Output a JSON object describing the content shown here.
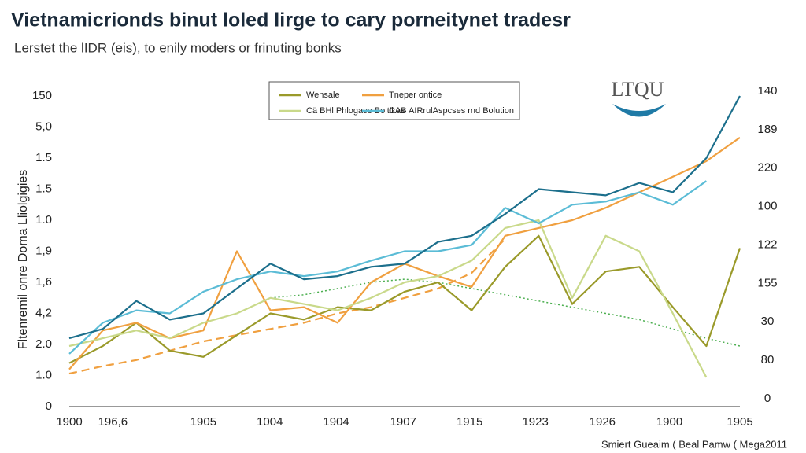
{
  "chart_data": {
    "type": "line",
    "title": "Vietnamicrionds binut loled lirge to cary porneitynet tradesr",
    "subtitle": "Lerstet the lIDR (eis), to enily moders or frinuting bonks",
    "y_label": "Fltenremil onre Doma Lliolgigies",
    "logo": "LTQU",
    "source": "Smiert Gueaim ( Beal Pamw ( Mega2011",
    "x": [
      0,
      5,
      10,
      15,
      20,
      25,
      30,
      35,
      40,
      45,
      50,
      55,
      60,
      65,
      70,
      75,
      80,
      85,
      90,
      95,
      100
    ],
    "xlim": [
      0,
      100
    ],
    "xticks": [
      {
        "value": 0,
        "label": "1900"
      },
      {
        "value": 6.5,
        "label": "196,6"
      },
      {
        "value": 20,
        "label": "1905"
      },
      {
        "value": 29.9,
        "label": "1004"
      },
      {
        "value": 39.8,
        "label": "1904"
      },
      {
        "value": 49.8,
        "label": "1907"
      },
      {
        "value": 59.7,
        "label": "1915"
      },
      {
        "value": 69.5,
        "label": "1923"
      },
      {
        "value": 79.5,
        "label": "1926"
      },
      {
        "value": 89.5,
        "label": "1900"
      },
      {
        "value": 100,
        "label": "1905"
      }
    ],
    "ylim": [
      0,
      100
    ],
    "yticks": [
      0,
      {
        "value": 10,
        "label": "1.0"
      },
      {
        "value": 20,
        "label": "2.0"
      },
      {
        "value": 30,
        "label": "4,2"
      },
      {
        "value": 40,
        "label": "1,6"
      },
      {
        "value": 50,
        "label": "1,9"
      },
      {
        "value": 60,
        "label": "1.0"
      },
      {
        "value": 70,
        "label": "1.5"
      },
      {
        "value": 80,
        "label": "1.5"
      },
      {
        "value": 90,
        "label": "5,0"
      },
      {
        "value": 100,
        "label": "150"
      }
    ],
    "y2lim": [
      0,
      160
    ],
    "y2ticks": [
      0,
      {
        "value": 20,
        "label": "80"
      },
      {
        "value": 40,
        "label": "30"
      },
      {
        "value": 60,
        "label": "155"
      },
      {
        "value": 80,
        "label": "122"
      },
      {
        "value": 100,
        "label": "100"
      },
      {
        "value": 120,
        "label": "220"
      },
      {
        "value": 140,
        "label": "189"
      },
      {
        "value": 160,
        "label": "140"
      }
    ],
    "series": [
      {
        "color": "#1c6f8c",
        "values": [
          22,
          25,
          34,
          28,
          30,
          38,
          46,
          41,
          42,
          45,
          46,
          53,
          55,
          62,
          70,
          69,
          68,
          72,
          69,
          80,
          100
        ]
      },
      {
        "name": "CAB AIRrulAspcses rnd Bolution",
        "color": "#5bbcd6",
        "values": [
          17,
          27,
          31,
          30,
          37,
          41,
          43.5,
          42,
          43.5,
          47,
          50,
          50,
          52,
          64,
          59,
          65,
          66,
          69,
          65,
          72.6,
          null
        ]
      },
      {
        "name": "Cä BHl Phlogace Boltikes",
        "color": "#c9d98a",
        "values": [
          19.5,
          22,
          24.5,
          22,
          27,
          30,
          35,
          33,
          31,
          35,
          40,
          42,
          47,
          57.5,
          60,
          35,
          55,
          50,
          30,
          9.4,
          null
        ]
      },
      {
        "name": "Tneper ontice",
        "color": "#f0a040",
        "values": [
          12,
          24.5,
          27,
          22,
          24.5,
          50,
          31,
          32,
          27,
          40,
          46,
          42,
          38.5,
          55,
          57.5,
          60,
          64,
          69,
          74,
          79,
          86.6
        ]
      },
      {
        "name": "Wensale",
        "color": "#9a9a2a",
        "values": [
          14,
          19.5,
          27,
          18,
          16,
          23,
          30,
          28,
          32,
          31,
          37,
          40,
          31,
          45,
          55,
          33,
          43.5,
          45,
          32,
          19.5,
          51
        ]
      },
      {
        "color": "#f0a040",
        "style": "dashed",
        "values": [
          10.6,
          13,
          15,
          18,
          21,
          23,
          25,
          27,
          30,
          32,
          35,
          38,
          43,
          54,
          null,
          null,
          null,
          null,
          null,
          null,
          null
        ]
      },
      {
        "color": "#4caf50",
        "style": "dotted",
        "values": [
          null,
          null,
          null,
          null,
          null,
          null,
          35,
          36,
          38,
          40,
          41,
          40,
          38,
          36,
          34,
          32,
          30,
          28,
          25,
          22,
          19.5
        ]
      }
    ],
    "legend_order": [
      4,
      2,
      3,
      1
    ]
  }
}
